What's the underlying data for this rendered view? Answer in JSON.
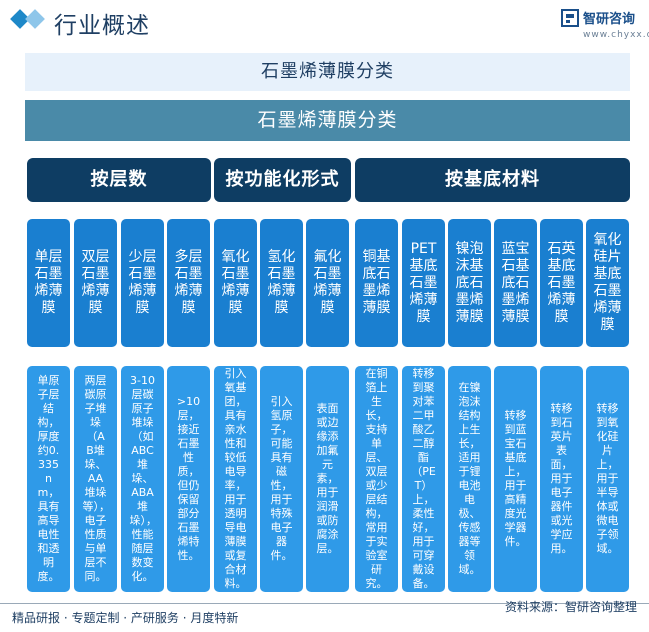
{
  "header": {
    "title": "行业概述",
    "logo_name": "智研咨询",
    "logo_url": "www.chyxx.com"
  },
  "title_bar_1": "石墨烯薄膜分类",
  "title_bar_2": "石墨烯薄膜分类",
  "categories": [
    "按层数",
    "按功能化形式",
    "按基底材料"
  ],
  "types": [
    "单层石墨烯薄膜",
    "双层石墨烯薄膜",
    "少层石墨烯薄膜",
    "多层石墨烯薄膜",
    "氧化石墨烯薄膜",
    "氢化石墨烯薄膜",
    "氟化石墨烯薄膜",
    "铜基底石墨烯薄膜",
    "PET基底石墨烯薄膜",
    "镍泡沫基底石墨烯薄膜",
    "蓝宝石基底石墨烯薄膜",
    "石英基底石墨烯薄膜",
    "氧化硅片基底石墨烯薄膜"
  ],
  "descriptions": [
    "单原子层结构，厚度约0.335nm，具有高导电性和透明度。",
    "两层碳原子堆垛（AB堆垛、AA堆垛等），电子性质与单层不同。",
    "3-10层碳原子堆垛（如ABC堆垛、ABA堆垛），性能随层数变化。",
    ">10层，接近石墨性质，但仍保留部分石墨烯特性。",
    "引入氧基团，具有亲水性和较低电导率，用于透明导电薄膜或复合材料。",
    "引入氢原子，可能具有磁性，用于特殊电子器件。",
    "表面或边缘添加氟元素，用于润滑或防腐涂层。",
    "在铜箔上生长，支持单层、双层或少层结构，常用于实验室研究。",
    "转移到聚对苯二甲酸乙二醇酯（PET）上，柔性好，用于可穿戴设备。",
    "在镍泡沫结构上生长，适用于锂电池电极、传感器等领域。",
    "转移到蓝宝石基底上，用于高精度光学器件。",
    "转移到石英片表面，用于电子器件或光学应用。",
    "转移到氧化硅片上，用于半导体或微电子领域。"
  ],
  "footer": {
    "left": "精品研报 · 专题定制 · 产研服务 · 月度特新",
    "right": "资料来源：智研咨询整理"
  },
  "colors": {
    "header_accent": "#1e88c8",
    "category_bg": "#0e3d63",
    "type_box_bg": "#1a7fd0",
    "desc_box_bg": "#2f9ae8",
    "title_bar_2_bg": "#4a8aa8"
  }
}
